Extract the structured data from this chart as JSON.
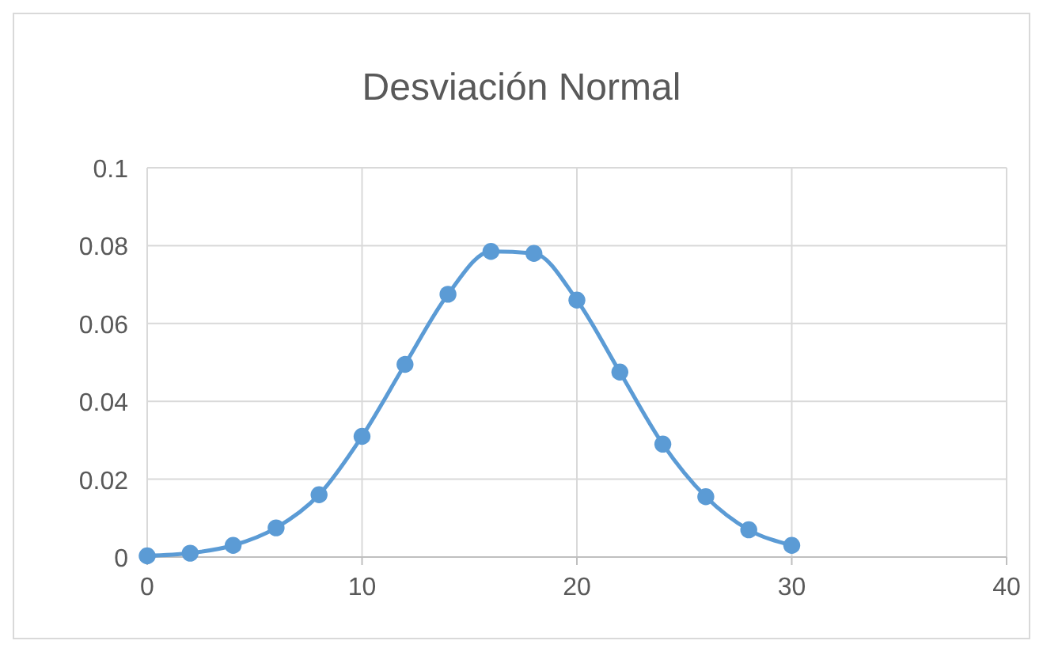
{
  "chart_data": {
    "type": "line",
    "title": "Desviación Normal",
    "x": [
      0,
      2,
      4,
      6,
      8,
      10,
      12,
      14,
      16,
      18,
      20,
      22,
      24,
      26,
      28,
      30
    ],
    "series": [
      {
        "color": "#5b9bd5",
        "values": [
          0.0003,
          0.001,
          0.003,
          0.0075,
          0.016,
          0.031,
          0.0495,
          0.0675,
          0.0785,
          0.078,
          0.066,
          0.0475,
          0.029,
          0.0155,
          0.007,
          0.003
        ]
      }
    ],
    "xlim": [
      0,
      40
    ],
    "xticks": [
      0,
      10,
      20,
      30,
      40
    ],
    "ylim": [
      0,
      0.1
    ],
    "yticks": [
      0,
      0.02,
      0.04,
      0.06,
      0.08,
      0.1
    ],
    "grid": true,
    "marker": "circle",
    "line_style": "solid"
  }
}
